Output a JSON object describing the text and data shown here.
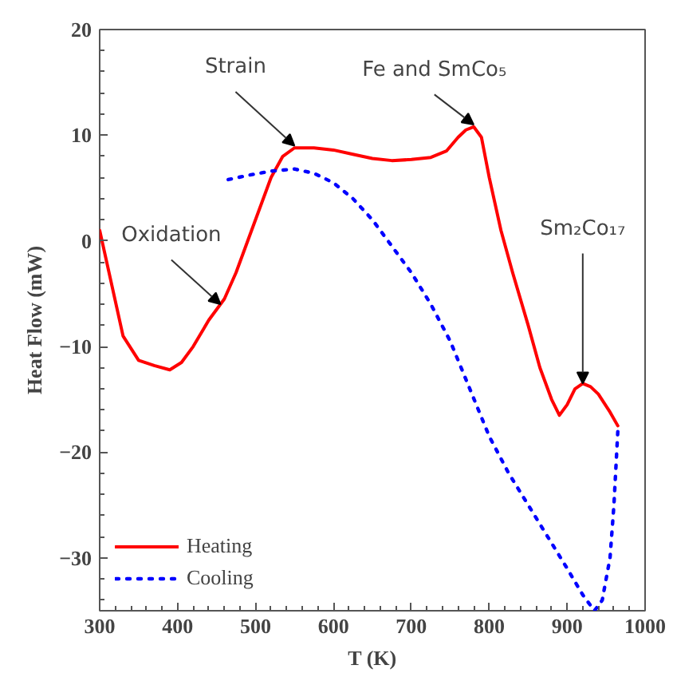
{
  "chart_data": {
    "type": "line",
    "xlabel": "T (K)",
    "ylabel": "Heat Flow (mW)",
    "xlim": [
      300,
      1000
    ],
    "ylim": [
      -35,
      20
    ],
    "xticks": [
      300,
      400,
      500,
      600,
      700,
      800,
      900,
      1000
    ],
    "yticks": [
      -30,
      -20,
      -10,
      0,
      10,
      20
    ],
    "grid": false,
    "legend": "bottom left",
    "series": [
      {
        "name": "Heating",
        "color": "#ff0000",
        "line_style": "solid",
        "x": [
          300,
          315,
          330,
          350,
          370,
          390,
          405,
          420,
          440,
          460,
          475,
          490,
          505,
          520,
          535,
          550,
          575,
          600,
          625,
          650,
          675,
          700,
          725,
          745,
          760,
          770,
          780,
          790,
          800,
          815,
          830,
          850,
          865,
          880,
          890,
          900,
          910,
          920,
          930,
          940,
          955,
          965
        ],
        "values": [
          1,
          -4,
          -9,
          -11.3,
          -11.8,
          -12.2,
          -11.5,
          -10,
          -7.5,
          -5.5,
          -3,
          0,
          3,
          6,
          8,
          8.8,
          8.8,
          8.6,
          8.2,
          7.8,
          7.6,
          7.7,
          7.9,
          8.5,
          9.8,
          10.5,
          10.8,
          9.8,
          6,
          1,
          -3,
          -8,
          -12,
          -15,
          -16.5,
          -15.5,
          -14,
          -13.5,
          -13.8,
          -14.5,
          -16.2,
          -17.5
        ]
      },
      {
        "name": "Cooling",
        "color": "#0000ff",
        "line_style": "dotted",
        "x": [
          465,
          490,
          520,
          550,
          575,
          600,
          625,
          650,
          675,
          700,
          725,
          750,
          775,
          800,
          825,
          850,
          875,
          900,
          920,
          935,
          945,
          955,
          960,
          965
        ],
        "values": [
          5.8,
          6.2,
          6.6,
          6.8,
          6.4,
          5.5,
          4,
          2,
          -0.5,
          -3,
          -6,
          -9.5,
          -14,
          -18.5,
          -22,
          -25,
          -28,
          -31,
          -33.5,
          -35,
          -34,
          -30,
          -25,
          -18
        ]
      }
    ],
    "annotations": [
      {
        "text": "Oxidation",
        "x": 455,
        "y": -6
      },
      {
        "text": "Strain",
        "x": 550,
        "y": 9
      },
      {
        "text": "Fe and SmCo₅",
        "x": 780,
        "y": 11
      },
      {
        "text": "Sm₂Co₁₇",
        "x": 920,
        "y": -13.5
      }
    ]
  }
}
